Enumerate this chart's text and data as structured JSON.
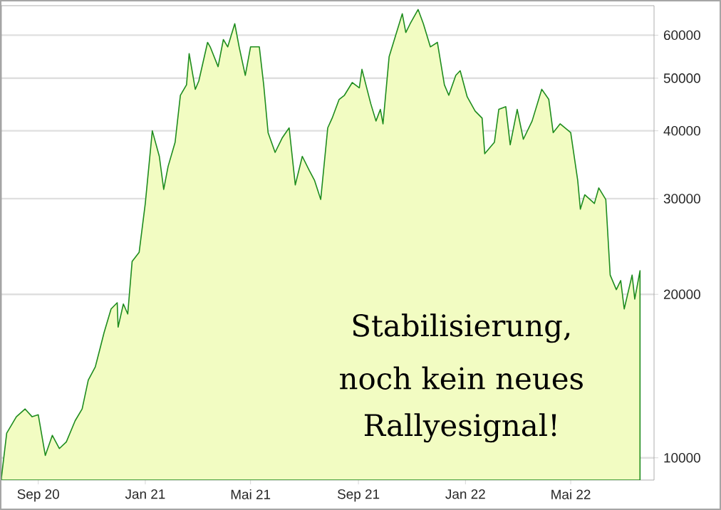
{
  "chart_data": {
    "type": "area",
    "annotations": [
      "Stabilisierung,",
      "noch kein neues",
      "Rallyesignal!"
    ],
    "x": [
      "2020-07-21",
      "2020-07-27",
      "2020-08-07",
      "2020-08-17",
      "2020-08-25",
      "2020-09-01",
      "2020-09-09",
      "2020-09-17",
      "2020-09-25",
      "2020-10-03",
      "2020-10-13",
      "2020-10-21",
      "2020-10-28",
      "2020-11-05",
      "2020-11-10",
      "2020-11-15",
      "2020-11-23",
      "2020-11-30",
      "2020-12-01",
      "2020-12-07",
      "2020-12-12",
      "2020-12-17",
      "2020-12-25",
      "2021-01-01",
      "2021-01-09",
      "2021-01-17",
      "2021-01-22",
      "2021-01-27",
      "2021-02-04",
      "2021-02-10",
      "2021-02-17",
      "2021-02-20",
      "2021-02-27",
      "2021-03-03",
      "2021-03-13",
      "2021-03-16",
      "2021-03-25",
      "2021-03-31",
      "2021-04-05",
      "2021-04-13",
      "2021-04-18",
      "2021-04-25",
      "2021-05-01",
      "2021-05-11",
      "2021-05-16",
      "2021-05-21",
      "2021-05-29",
      "2021-06-06",
      "2021-06-14",
      "2021-06-21",
      "2021-06-29",
      "2021-07-07",
      "2021-07-13",
      "2021-07-20",
      "2021-07-28",
      "2021-08-02",
      "2021-08-10",
      "2021-08-16",
      "2021-08-25",
      "2021-09-02",
      "2021-09-05",
      "2021-09-15",
      "2021-09-21",
      "2021-09-26",
      "2021-09-29",
      "2021-10-06",
      "2021-10-21",
      "2021-10-25",
      "2021-10-30",
      "2021-11-08",
      "2021-11-14",
      "2021-11-22",
      "2021-11-30",
      "2021-12-08",
      "2021-12-13",
      "2021-12-21",
      "2021-12-26",
      "2022-01-03",
      "2022-01-12",
      "2022-01-20",
      "2022-01-23",
      "2022-02-03",
      "2022-02-08",
      "2022-02-16",
      "2022-02-21",
      "2022-03-01",
      "2022-03-08",
      "2022-03-18",
      "2022-03-29",
      "2022-04-06",
      "2022-04-11",
      "2022-04-19",
      "2022-05-01",
      "2022-05-09",
      "2022-05-12",
      "2022-05-17",
      "2022-05-28",
      "2022-06-02",
      "2022-06-10",
      "2022-06-15",
      "2022-06-22",
      "2022-06-27",
      "2022-07-01",
      "2022-07-10",
      "2022-07-13",
      "2022-07-19"
    ],
    "series": [
      {
        "color": "#1e8c1e",
        "values": [
          9200,
          11100,
          11900,
          12300,
          11900,
          12000,
          10100,
          11000,
          10400,
          10700,
          11700,
          12300,
          13900,
          14700,
          15800,
          17000,
          18800,
          19300,
          17400,
          19200,
          18400,
          23000,
          23900,
          29400,
          40000,
          35900,
          31200,
          34400,
          38100,
          46500,
          48600,
          55500,
          47700,
          49400,
          58200,
          57100,
          52500,
          58900,
          57100,
          63000,
          57100,
          50600,
          57100,
          57100,
          48600,
          39700,
          36500,
          38800,
          40500,
          31800,
          35900,
          33800,
          32400,
          29900,
          40500,
          42200,
          45700,
          46500,
          49100,
          48000,
          51900,
          44900,
          41700,
          43800,
          41200,
          54800,
          65700,
          60700,
          63000,
          66900,
          63000,
          57100,
          58200,
          48600,
          46500,
          50600,
          51600,
          46200,
          43500,
          42200,
          36300,
          38100,
          43800,
          44300,
          37700,
          43800,
          38600,
          41700,
          47700,
          45700,
          39700,
          41200,
          39700,
          32400,
          28700,
          30500,
          29400,
          31400,
          29900,
          21700,
          20400,
          21200,
          18800,
          21700,
          19600,
          22100
        ]
      }
    ],
    "log": "y",
    "grid": "y",
    "xlim": [
      "2020-07-21",
      "2022-08-04"
    ],
    "xticks": [
      {
        "value": "2020-09-01",
        "label": "Sep 20"
      },
      {
        "value": "2021-01-01",
        "label": "Jan 21"
      },
      {
        "value": "2021-05-01",
        "label": "Mai 21"
      },
      {
        "value": "2021-09-01",
        "label": "Sep 21"
      },
      {
        "value": "2022-01-01",
        "label": "Jan 22"
      },
      {
        "value": "2022-05-01",
        "label": "Mai 22"
      }
    ],
    "ylim": [
      9100,
      68000
    ],
    "yticks": [
      10000,
      20000,
      30000,
      40000,
      50000,
      60000
    ]
  }
}
